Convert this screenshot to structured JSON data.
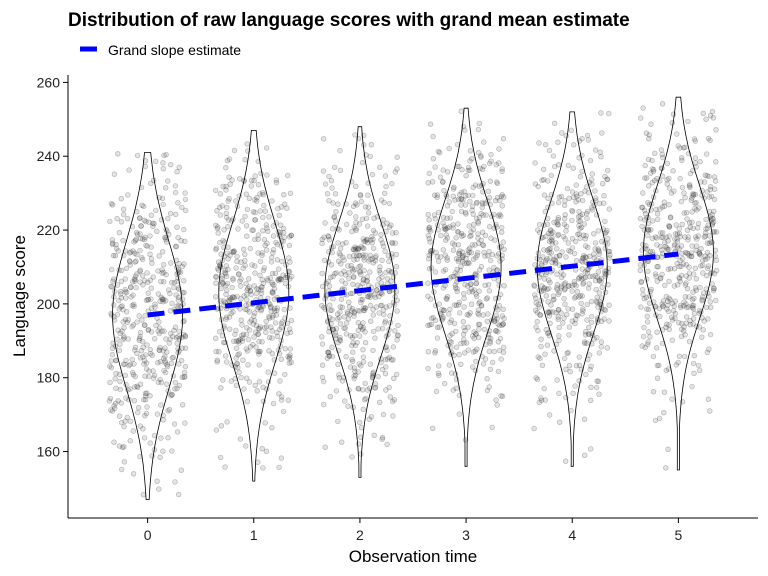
{
  "chart_data": {
    "type": "scatter",
    "title": "Distribution of raw language scores with grand mean estimate",
    "xlabel": "Observation time",
    "ylabel": "Language score",
    "categories": [
      "0",
      "1",
      "2",
      "3",
      "4",
      "5"
    ],
    "xlim": [
      -0.75,
      5.75
    ],
    "ylim": [
      142,
      262
    ],
    "yticks": [
      160,
      180,
      200,
      220,
      240,
      260
    ],
    "grid": false,
    "legend": {
      "position": "top-left",
      "entries": [
        "Grand slope estimate"
      ]
    },
    "series": [
      {
        "name": "Grand slope estimate",
        "kind": "dashed-line",
        "color": "#0000FF",
        "x": [
          0,
          1,
          2,
          3,
          4,
          5
        ],
        "y": [
          197.0,
          200.3,
          203.6,
          206.9,
          210.2,
          213.5
        ]
      }
    ],
    "distributions": [
      {
        "time": 0,
        "mean": 197,
        "sd": 20,
        "min": 147,
        "max": 241
      },
      {
        "time": 1,
        "mean": 203,
        "sd": 19,
        "min": 152,
        "max": 247
      },
      {
        "time": 2,
        "mean": 204,
        "sd": 18,
        "min": 153,
        "max": 248
      },
      {
        "time": 3,
        "mean": 210,
        "sd": 18,
        "min": 156,
        "max": 253
      },
      {
        "time": 4,
        "mean": 210,
        "sd": 18,
        "min": 156,
        "max": 252
      },
      {
        "time": 5,
        "mean": 214,
        "sd": 18,
        "min": 155,
        "max": 256
      }
    ],
    "colors": {
      "points": "#000000",
      "violin": "#000000",
      "slope": "#0000FF"
    }
  }
}
